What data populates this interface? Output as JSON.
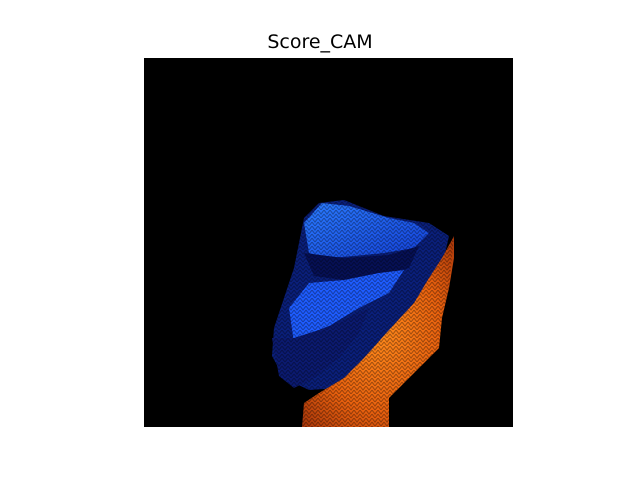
{
  "figure": {
    "title": "Score_CAM"
  },
  "image": {
    "description_colors": {
      "background": "#000000",
      "blue_region": "#1e5cff",
      "dark_blue_region": "#0a1a66",
      "orange_region": "#f06010"
    }
  }
}
